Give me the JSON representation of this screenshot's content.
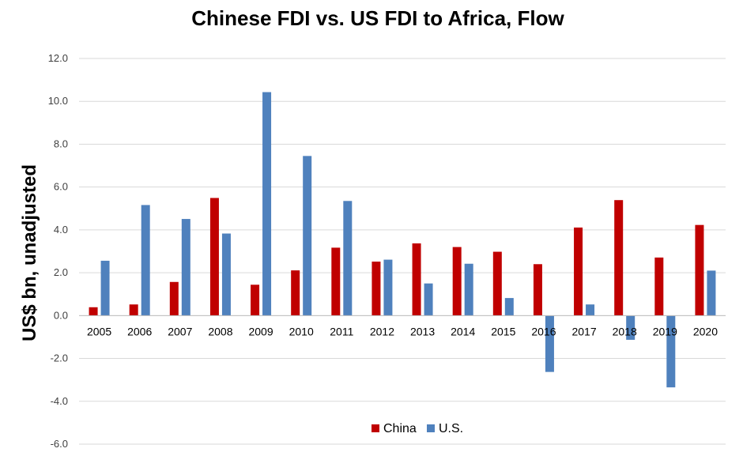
{
  "chart_data": {
    "type": "bar",
    "title": "Chinese FDI vs. US FDI to Africa, Flow",
    "xlabel": "",
    "ylabel": "US$ bn, unadjusted",
    "ylim": [
      -6.0,
      12.0
    ],
    "ytick_step": 2.0,
    "yticks": [
      "12.0",
      "10.0",
      "8.0",
      "6.0",
      "4.0",
      "2.0",
      "0.0",
      "-2.0",
      "-4.0",
      "-6.0"
    ],
    "grid": true,
    "legend_position": "bottom-center",
    "categories": [
      "2005",
      "2006",
      "2007",
      "2008",
      "2009",
      "2010",
      "2011",
      "2012",
      "2013",
      "2014",
      "2015",
      "2016",
      "2017",
      "2018",
      "2019",
      "2020"
    ],
    "series": [
      {
        "name": "China",
        "color": "#C00000",
        "values": [
          0.39,
          0.52,
          1.57,
          5.49,
          1.44,
          2.11,
          3.17,
          2.52,
          3.37,
          3.2,
          2.98,
          2.4,
          4.11,
          5.39,
          2.71,
          4.23
        ]
      },
      {
        "name": "U.S.",
        "color": "#4F81BD",
        "values": [
          2.56,
          5.16,
          4.51,
          3.83,
          10.43,
          7.45,
          5.35,
          2.61,
          1.5,
          2.42,
          0.82,
          -2.63,
          0.52,
          -1.13,
          -3.35,
          2.1
        ]
      }
    ]
  }
}
